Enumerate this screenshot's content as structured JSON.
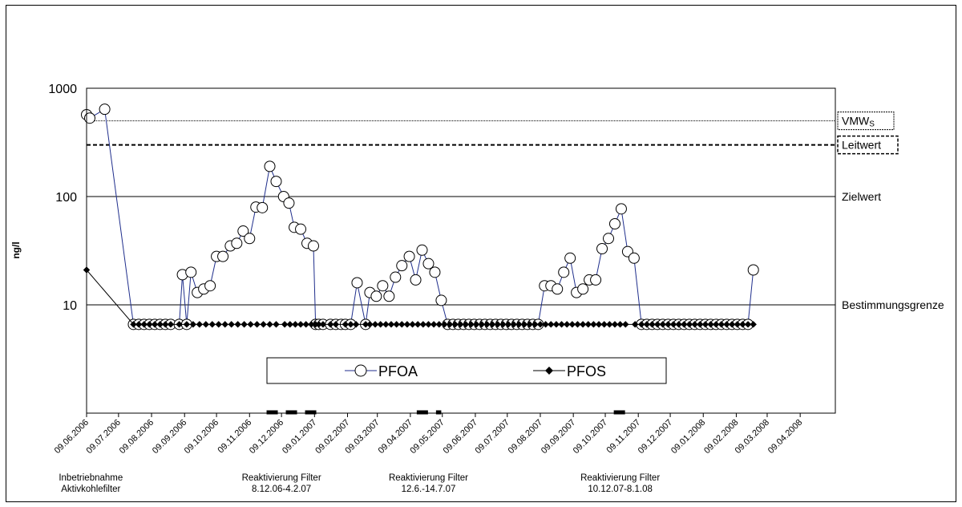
{
  "chart_data": {
    "type": "line",
    "ylabel": "ng/l",
    "yscale": "log",
    "ylim": [
      1,
      1000
    ],
    "yticks": [
      "10",
      "100",
      "1000"
    ],
    "x_ticks": [
      "09.06.2006",
      "09.07.2006",
      "09.08.2006",
      "09.09.2006",
      "09.10.2006",
      "09.11.2006",
      "09.12.2006",
      "09.01.2007",
      "09.02.2007",
      "09.03.2007",
      "09.04.2007",
      "09.05.2007",
      "09.06.2007",
      "09.07.2007",
      "09.08.2007",
      "09.09.2007",
      "09.10.2007",
      "09.11.2007",
      "09.12.2007",
      "09.01.2008",
      "09.02.2008",
      "09.03.2008",
      "09.04.2008"
    ],
    "reference_lines": [
      {
        "label": "VMWS",
        "label_main": "VMW",
        "label_sub": "S",
        "value": 500,
        "style": "dotted",
        "boxed": true
      },
      {
        "label": "Leitwert",
        "value": 300,
        "style": "dashed",
        "boxed": true
      },
      {
        "label": "Zielwert",
        "value": 100,
        "style": "solid",
        "boxed": false
      },
      {
        "label": "Bestimmungsgrenze",
        "value": 10,
        "style": "solid",
        "boxed": false
      }
    ],
    "series": [
      {
        "name": "PFOA",
        "marker": "open-circle",
        "color": "#1f2e8c",
        "points": [
          [
            "2006-06-09",
            570
          ],
          [
            "2006-06-12",
            530
          ],
          [
            "2006-06-26",
            640
          ],
          [
            "2006-07-23",
            6.6
          ],
          [
            "2006-07-28",
            6.6
          ],
          [
            "2006-08-02",
            6.6
          ],
          [
            "2006-08-07",
            6.6
          ],
          [
            "2006-08-12",
            6.6
          ],
          [
            "2006-08-17",
            6.6
          ],
          [
            "2006-08-22",
            6.6
          ],
          [
            "2006-08-27",
            6.6
          ],
          [
            "2006-09-04",
            6.6
          ],
          [
            "2006-09-07",
            19
          ],
          [
            "2006-09-11",
            6.6
          ],
          [
            "2006-09-15",
            20
          ],
          [
            "2006-09-21",
            13
          ],
          [
            "2006-09-27",
            14
          ],
          [
            "2006-10-03",
            15
          ],
          [
            "2006-10-09",
            28
          ],
          [
            "2006-10-15",
            28
          ],
          [
            "2006-10-22",
            35
          ],
          [
            "2006-10-28",
            37
          ],
          [
            "2006-11-03",
            48
          ],
          [
            "2006-11-09",
            41
          ],
          [
            "2006-11-15",
            80
          ],
          [
            "2006-11-21",
            79
          ],
          [
            "2006-11-28",
            190
          ],
          [
            "2006-12-04",
            138
          ],
          [
            "2006-12-11",
            100
          ],
          [
            "2006-12-16",
            87
          ],
          [
            "2006-12-21",
            52
          ],
          [
            "2006-12-27",
            50
          ],
          [
            "2007-01-02",
            37
          ],
          [
            "2007-01-08",
            35
          ],
          [
            "2007-01-10",
            6.6
          ],
          [
            "2007-01-13",
            6.6
          ],
          [
            "2007-01-17",
            6.6
          ],
          [
            "2007-01-24",
            6.6
          ],
          [
            "2007-01-29",
            6.6
          ],
          [
            "2007-02-03",
            6.6
          ],
          [
            "2007-02-07",
            6.6
          ],
          [
            "2007-02-12",
            6.6
          ],
          [
            "2007-02-18",
            16
          ],
          [
            "2007-02-26",
            6.6
          ],
          [
            "2007-03-02",
            13
          ],
          [
            "2007-03-08",
            12
          ],
          [
            "2007-03-14",
            15
          ],
          [
            "2007-03-20",
            12
          ],
          [
            "2007-03-26",
            18
          ],
          [
            "2007-04-01",
            23
          ],
          [
            "2007-04-08",
            28
          ],
          [
            "2007-04-14",
            17
          ],
          [
            "2007-04-20",
            32
          ],
          [
            "2007-04-26",
            24
          ],
          [
            "2007-05-02",
            20
          ],
          [
            "2007-05-08",
            11
          ],
          [
            "2007-05-14",
            6.6
          ],
          [
            "2007-05-19",
            6.6
          ],
          [
            "2007-05-24",
            6.6
          ],
          [
            "2007-05-29",
            6.6
          ],
          [
            "2007-06-03",
            6.6
          ],
          [
            "2007-06-08",
            6.6
          ],
          [
            "2007-06-13",
            6.6
          ],
          [
            "2007-06-18",
            6.6
          ],
          [
            "2007-06-23",
            6.6
          ],
          [
            "2007-06-28",
            6.6
          ],
          [
            "2007-07-03",
            6.6
          ],
          [
            "2007-07-08",
            6.6
          ],
          [
            "2007-07-13",
            6.6
          ],
          [
            "2007-07-18",
            6.6
          ],
          [
            "2007-07-23",
            6.6
          ],
          [
            "2007-07-28",
            6.6
          ],
          [
            "2007-08-02",
            6.6
          ],
          [
            "2007-08-07",
            6.6
          ],
          [
            "2007-08-13",
            15
          ],
          [
            "2007-08-19",
            15
          ],
          [
            "2007-08-25",
            14
          ],
          [
            "2007-08-31",
            20
          ],
          [
            "2007-09-06",
            27
          ],
          [
            "2007-09-12",
            13
          ],
          [
            "2007-09-18",
            14
          ],
          [
            "2007-09-24",
            17
          ],
          [
            "2007-09-30",
            17
          ],
          [
            "2007-10-06",
            33
          ],
          [
            "2007-10-12",
            41
          ],
          [
            "2007-10-18",
            56
          ],
          [
            "2007-10-24",
            77
          ],
          [
            "2007-10-30",
            31
          ],
          [
            "2007-11-05",
            27
          ],
          [
            "2007-11-12",
            6.6
          ],
          [
            "2007-11-17",
            6.6
          ],
          [
            "2007-11-22",
            6.6
          ],
          [
            "2007-11-27",
            6.6
          ],
          [
            "2007-12-02",
            6.6
          ],
          [
            "2007-12-07",
            6.6
          ],
          [
            "2007-12-12",
            6.6
          ],
          [
            "2007-12-17",
            6.6
          ],
          [
            "2007-12-22",
            6.6
          ],
          [
            "2007-12-27",
            6.6
          ],
          [
            "2008-01-01",
            6.6
          ],
          [
            "2008-01-06",
            6.6
          ],
          [
            "2008-01-11",
            6.6
          ],
          [
            "2008-01-16",
            6.6
          ],
          [
            "2008-01-21",
            6.6
          ],
          [
            "2008-01-26",
            6.6
          ],
          [
            "2008-01-31",
            6.6
          ],
          [
            "2008-02-05",
            6.6
          ],
          [
            "2008-02-10",
            6.6
          ],
          [
            "2008-02-15",
            6.6
          ],
          [
            "2008-02-20",
            6.6
          ],
          [
            "2008-02-25",
            21
          ]
        ]
      },
      {
        "name": "PFOS",
        "marker": "filled-diamond",
        "color": "#000000",
        "points": [
          [
            "2006-06-09",
            21
          ],
          [
            "2006-07-23",
            6.6
          ],
          [
            "2006-07-28",
            6.6
          ],
          [
            "2006-08-02",
            6.6
          ],
          [
            "2006-08-07",
            6.6
          ],
          [
            "2006-08-12",
            6.6
          ],
          [
            "2006-08-17",
            6.6
          ],
          [
            "2006-08-22",
            6.6
          ],
          [
            "2006-08-27",
            6.6
          ],
          [
            "2006-09-04",
            6.6
          ],
          [
            "2006-09-11",
            6.6
          ],
          [
            "2006-09-17",
            6.6
          ],
          [
            "2006-09-23",
            6.6
          ],
          [
            "2006-09-29",
            6.6
          ],
          [
            "2006-10-05",
            6.6
          ],
          [
            "2006-10-11",
            6.6
          ],
          [
            "2006-10-17",
            6.6
          ],
          [
            "2006-10-23",
            6.6
          ],
          [
            "2006-10-29",
            6.6
          ],
          [
            "2006-11-04",
            6.6
          ],
          [
            "2006-11-10",
            6.6
          ],
          [
            "2006-11-16",
            6.6
          ],
          [
            "2006-11-22",
            6.6
          ],
          [
            "2006-11-28",
            6.6
          ],
          [
            "2006-12-04",
            6.6
          ],
          [
            "2006-12-12",
            6.6
          ],
          [
            "2006-12-17",
            6.6
          ],
          [
            "2006-12-22",
            6.6
          ],
          [
            "2006-12-27",
            6.6
          ],
          [
            "2007-01-01",
            6.6
          ],
          [
            "2007-01-06",
            6.6
          ],
          [
            "2007-01-10",
            6.6
          ],
          [
            "2007-01-13",
            6.6
          ],
          [
            "2007-01-17",
            6.6
          ],
          [
            "2007-01-24",
            6.6
          ],
          [
            "2007-01-29",
            6.6
          ],
          [
            "2007-02-07",
            6.6
          ],
          [
            "2007-02-12",
            6.6
          ],
          [
            "2007-02-17",
            6.6
          ],
          [
            "2007-02-26",
            6.6
          ],
          [
            "2007-03-02",
            6.6
          ],
          [
            "2007-03-07",
            6.6
          ],
          [
            "2007-03-12",
            6.6
          ],
          [
            "2007-03-17",
            6.6
          ],
          [
            "2007-03-22",
            6.6
          ],
          [
            "2007-03-27",
            6.6
          ],
          [
            "2007-04-01",
            6.6
          ],
          [
            "2007-04-06",
            6.6
          ],
          [
            "2007-04-11",
            6.6
          ],
          [
            "2007-04-16",
            6.6
          ],
          [
            "2007-04-21",
            6.6
          ],
          [
            "2007-04-26",
            6.6
          ],
          [
            "2007-05-01",
            6.6
          ],
          [
            "2007-05-06",
            6.6
          ],
          [
            "2007-05-11",
            6.6
          ],
          [
            "2007-05-16",
            6.6
          ],
          [
            "2007-05-21",
            6.6
          ],
          [
            "2007-05-26",
            6.6
          ],
          [
            "2007-05-31",
            6.6
          ],
          [
            "2007-06-05",
            6.6
          ],
          [
            "2007-06-10",
            6.6
          ],
          [
            "2007-06-15",
            6.6
          ],
          [
            "2007-06-20",
            6.6
          ],
          [
            "2007-06-25",
            6.6
          ],
          [
            "2007-06-30",
            6.6
          ],
          [
            "2007-07-05",
            6.6
          ],
          [
            "2007-07-10",
            6.6
          ],
          [
            "2007-07-15",
            6.6
          ],
          [
            "2007-07-20",
            6.6
          ],
          [
            "2007-07-25",
            6.6
          ],
          [
            "2007-07-30",
            6.6
          ],
          [
            "2007-08-04",
            6.6
          ],
          [
            "2007-08-09",
            6.6
          ],
          [
            "2007-08-14",
            6.6
          ],
          [
            "2007-08-19",
            6.6
          ],
          [
            "2007-08-24",
            6.6
          ],
          [
            "2007-08-29",
            6.6
          ],
          [
            "2007-09-03",
            6.6
          ],
          [
            "2007-09-08",
            6.6
          ],
          [
            "2007-09-13",
            6.6
          ],
          [
            "2007-09-18",
            6.6
          ],
          [
            "2007-09-23",
            6.6
          ],
          [
            "2007-09-28",
            6.6
          ],
          [
            "2007-10-03",
            6.6
          ],
          [
            "2007-10-08",
            6.6
          ],
          [
            "2007-10-13",
            6.6
          ],
          [
            "2007-10-18",
            6.6
          ],
          [
            "2007-10-23",
            6.6
          ],
          [
            "2007-10-28",
            6.6
          ],
          [
            "2007-11-06",
            6.6
          ],
          [
            "2007-11-12",
            6.6
          ],
          [
            "2007-11-17",
            6.6
          ],
          [
            "2007-11-22",
            6.6
          ],
          [
            "2007-11-27",
            6.6
          ],
          [
            "2007-12-02",
            6.6
          ],
          [
            "2007-12-07",
            6.6
          ],
          [
            "2007-12-12",
            6.6
          ],
          [
            "2007-12-17",
            6.6
          ],
          [
            "2007-12-22",
            6.6
          ],
          [
            "2007-12-27",
            6.6
          ],
          [
            "2008-01-01",
            6.6
          ],
          [
            "2008-01-06",
            6.6
          ],
          [
            "2008-01-11",
            6.6
          ],
          [
            "2008-01-16",
            6.6
          ],
          [
            "2008-01-21",
            6.6
          ],
          [
            "2008-01-26",
            6.6
          ],
          [
            "2008-01-31",
            6.6
          ],
          [
            "2008-02-05",
            6.6
          ],
          [
            "2008-02-10",
            6.6
          ],
          [
            "2008-02-15",
            6.6
          ],
          [
            "2008-02-20",
            6.6
          ],
          [
            "2008-02-25",
            6.6
          ]
        ]
      }
    ],
    "events": [
      {
        "lines": [
          "Inbetriebnahme",
          "Aktivkohlefilter"
        ],
        "date": "2006-06-13"
      },
      {
        "lines": [
          "Reaktivierung Filter",
          "8.12.06-4.2.07"
        ],
        "date": "2006-12-09",
        "bar_from": "2006-11-25",
        "bar_to": "2007-01-12"
      },
      {
        "lines": [
          "Reaktivierung Filter",
          "12.6.-14.7.07"
        ],
        "date": "2007-04-26",
        "bar_from": "2007-04-15",
        "bar_to": "2007-05-08"
      },
      {
        "lines": [
          "Reaktivierung Filter",
          "10.12.07-8.1.08"
        ],
        "date": "2007-10-23",
        "bar_from": "2007-10-17",
        "bar_to": "2007-11-01"
      }
    ],
    "legend": {
      "position": "bottom-center",
      "entries": [
        "PFOA",
        "PFOS"
      ]
    }
  }
}
